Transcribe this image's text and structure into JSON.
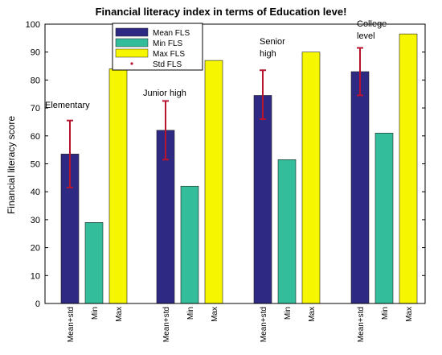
{
  "chart_data": {
    "type": "bar",
    "title": "Financial literacy index in terms of Education leve!",
    "ylabel": "Financial literacy score",
    "ylim": [
      0,
      100
    ],
    "yticks": [
      0,
      10,
      20,
      30,
      40,
      50,
      60,
      70,
      80,
      90,
      100
    ],
    "bar_labels": [
      "Mean+std",
      "Min",
      "Max"
    ],
    "groups": [
      {
        "label": [
          "Elementary"
        ],
        "mean": 53.5,
        "min": 29,
        "max": 84,
        "std_low": 41.5,
        "std_high": 65.5
      },
      {
        "label": [
          "Junior high"
        ],
        "mean": 62,
        "min": 42,
        "max": 87,
        "std_low": 51.5,
        "std_high": 72.5
      },
      {
        "label": [
          "Senior",
          "high"
        ],
        "mean": 74.5,
        "min": 51.5,
        "max": 90,
        "std_low": 66,
        "std_high": 83.5
      },
      {
        "label": [
          "College",
          "level"
        ],
        "mean": 83,
        "min": 61,
        "max": 96.5,
        "std_low": 74.5,
        "std_high": 91.5
      }
    ],
    "legend": [
      {
        "label": "Mean FLS",
        "kind": "bar",
        "color": "#2e2a84"
      },
      {
        "label": "Min FLS",
        "kind": "bar",
        "color": "#33bd9a"
      },
      {
        "label": "Max FLS",
        "kind": "bar",
        "color": "#f6f600"
      },
      {
        "label": "Std FLS",
        "kind": "errorbar",
        "color": "#b8142e"
      }
    ],
    "legend_position": "top-left",
    "colors": {
      "mean": "#2e2a84",
      "min": "#33bd9a",
      "max": "#f6f600",
      "std": "#b8142e"
    }
  }
}
